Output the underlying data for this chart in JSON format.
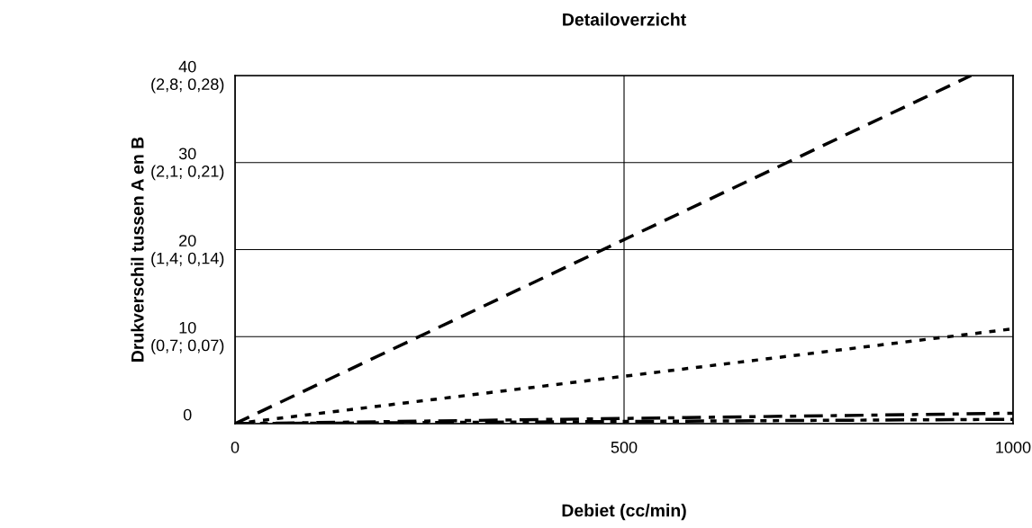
{
  "chart_data": {
    "type": "line",
    "title": "Detailoverzicht",
    "xlabel": "Debiet (cc/min)",
    "ylabel": "Drukverschil tussen A en B",
    "series": [
      {
        "color": "#000000",
        "line_style": "dashed",
        "x": [
          0,
          946
        ],
        "values": [
          0,
          40
        ]
      },
      {
        "color": "#000000",
        "line_style": "dotted",
        "x": [
          0,
          1000
        ],
        "values": [
          0,
          10.9
        ]
      },
      {
        "color": "#000000",
        "line_style": "dashdot",
        "x": [
          0,
          1000
        ],
        "values": [
          0,
          1.2
        ]
      },
      {
        "color": "#000000",
        "line_style": "dashdotdot",
        "x": [
          0,
          1000
        ],
        "values": [
          0,
          0.5
        ]
      }
    ],
    "xlim": [
      0,
      1000
    ],
    "xticks": [
      0,
      500,
      1000
    ],
    "ylim": [
      0,
      40
    ],
    "yticks": [
      0,
      10,
      20,
      30,
      40
    ],
    "annotations": [
      "(0,7; 0,07)",
      "(1,4; 0,14)",
      "(2,1; 0,21)",
      "(2,8; 0,28)"
    ],
    "grid": true,
    "legend": false,
    "marker": "none"
  }
}
